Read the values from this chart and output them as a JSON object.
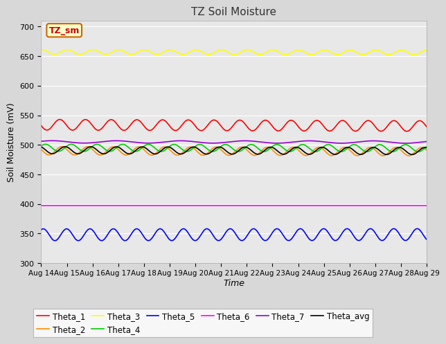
{
  "title": "TZ Soil Moisture",
  "xlabel": "Time",
  "ylabel": "Soil Moisture (mV)",
  "ylim": [
    300,
    710
  ],
  "yticks": [
    300,
    350,
    400,
    450,
    500,
    550,
    600,
    650,
    700
  ],
  "fig_bg_color": "#d8d8d8",
  "plot_bg_color": "#e8e8e8",
  "legend_label": "TZ_sm",
  "series": [
    {
      "name": "Theta_1",
      "color": "#ff0000",
      "base": 534,
      "amplitude": 9,
      "cycles_per_day": 1.0,
      "phase": 3.3,
      "trend": -0.15
    },
    {
      "name": "Theta_2",
      "color": "#ff8c00",
      "base": 490,
      "amplitude": 7,
      "cycles_per_day": 1.0,
      "phase": 2.8,
      "trend": -0.1
    },
    {
      "name": "Theta_3",
      "color": "#ffff00",
      "base": 657,
      "amplitude": 4,
      "cycles_per_day": 1.0,
      "phase": 1.5,
      "trend": -0.05
    },
    {
      "name": "Theta_4",
      "color": "#00cc00",
      "base": 495,
      "amplitude": 6,
      "cycles_per_day": 1.0,
      "phase": 0.5,
      "trend": -0.05
    },
    {
      "name": "Theta_5",
      "color": "#0000ff",
      "base": 348,
      "amplitude": 10,
      "cycles_per_day": 1.1,
      "phase": 1.0,
      "trend": 0.02
    },
    {
      "name": "Theta_6",
      "color": "#ff00ff",
      "base": 397,
      "amplitude": 0.5,
      "cycles_per_day": 0.0,
      "phase": 0.0,
      "trend": 0.0
    },
    {
      "name": "Theta_7",
      "color": "#9900cc",
      "base": 505,
      "amplitude": 2,
      "cycles_per_day": 0.4,
      "phase": 0.5,
      "trend": -0.02
    },
    {
      "name": "Theta_avg",
      "color": "#000000",
      "base": 491,
      "amplitude": 6,
      "cycles_per_day": 1.0,
      "phase": 2.0,
      "trend": -0.1
    }
  ],
  "n_points": 1000,
  "x_start": 14,
  "x_end": 29,
  "xtick_days": [
    14,
    15,
    16,
    17,
    18,
    19,
    20,
    21,
    22,
    23,
    24,
    25,
    26,
    27,
    28,
    29
  ],
  "xtick_labels": [
    "Aug 14",
    "Aug 15",
    "Aug 16",
    "Aug 17",
    "Aug 18",
    "Aug 19",
    "Aug 20",
    "Aug 21",
    "Aug 22",
    "Aug 23",
    "Aug 24",
    "Aug 25",
    "Aug 26",
    "Aug 27",
    "Aug 28",
    "Aug 29"
  ],
  "legend_box_facecolor": "#ffffcc",
  "legend_box_edgecolor": "#cc6600",
  "legend_text_color": "#cc0000",
  "grid_color": "#ffffff",
  "title_color": "#333333"
}
